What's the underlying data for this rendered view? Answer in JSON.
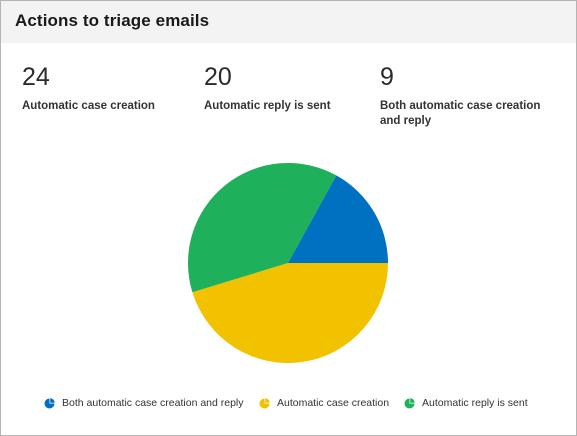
{
  "panel": {
    "title": "Actions to triage emails"
  },
  "metrics": [
    {
      "value": "24",
      "label": "Automatic case creation"
    },
    {
      "value": "20",
      "label": "Automatic reply is sent"
    },
    {
      "value": "9",
      "label": "Both automatic case creation and reply"
    }
  ],
  "chart_data": {
    "type": "pie",
    "slices": [
      {
        "name": "Both automatic case creation and reply",
        "value": 9,
        "color": "#0070c0"
      },
      {
        "name": "Automatic case creation",
        "value": 24,
        "color": "#f2c200"
      },
      {
        "name": "Automatic reply is sent",
        "value": 20,
        "color": "#1eb05a"
      }
    ],
    "legend": {
      "position": "bottom",
      "items": [
        {
          "label": "Both automatic case creation and reply",
          "color": "#0070c0",
          "icon": "pie-icon"
        },
        {
          "label": "Automatic case creation",
          "color": "#f2c200",
          "icon": "pie-icon"
        },
        {
          "label": "Automatic reply is sent",
          "color": "#1eb05a",
          "icon": "pie-icon"
        }
      ]
    }
  }
}
